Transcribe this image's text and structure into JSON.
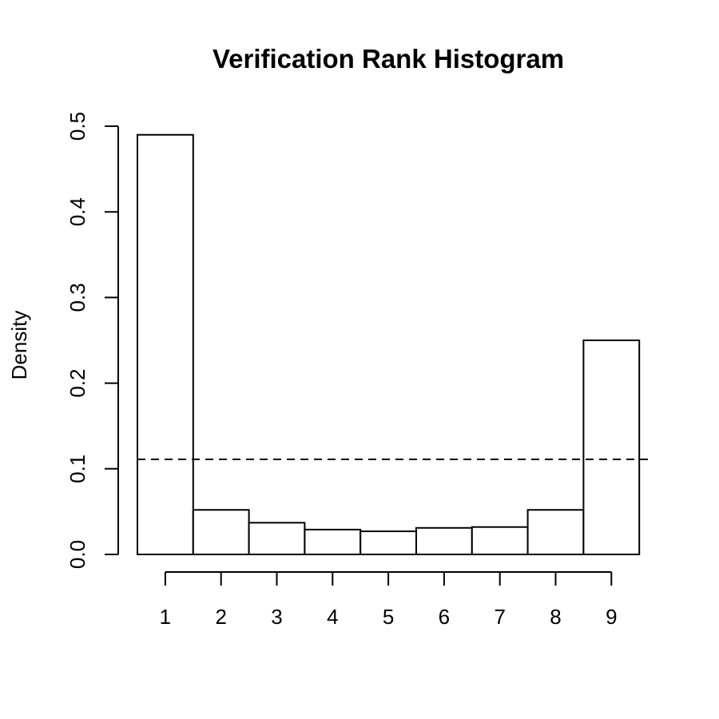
{
  "chart_data": {
    "type": "bar",
    "title": "Verification Rank Histogram",
    "xlabel": "",
    "ylabel": "Density",
    "categories": [
      "1",
      "2",
      "3",
      "4",
      "5",
      "6",
      "7",
      "8",
      "9"
    ],
    "values": [
      0.49,
      0.052,
      0.037,
      0.029,
      0.027,
      0.031,
      0.032,
      0.052,
      0.25
    ],
    "ylim": [
      0,
      0.5
    ],
    "yticks": [
      "0.0",
      "0.1",
      "0.2",
      "0.3",
      "0.4",
      "0.5"
    ],
    "reference_line": {
      "y": 0.111,
      "style": "dashed"
    },
    "bar_fill": "#ffffff",
    "bar_stroke": "#000000",
    "grid": false,
    "legend": "none"
  }
}
